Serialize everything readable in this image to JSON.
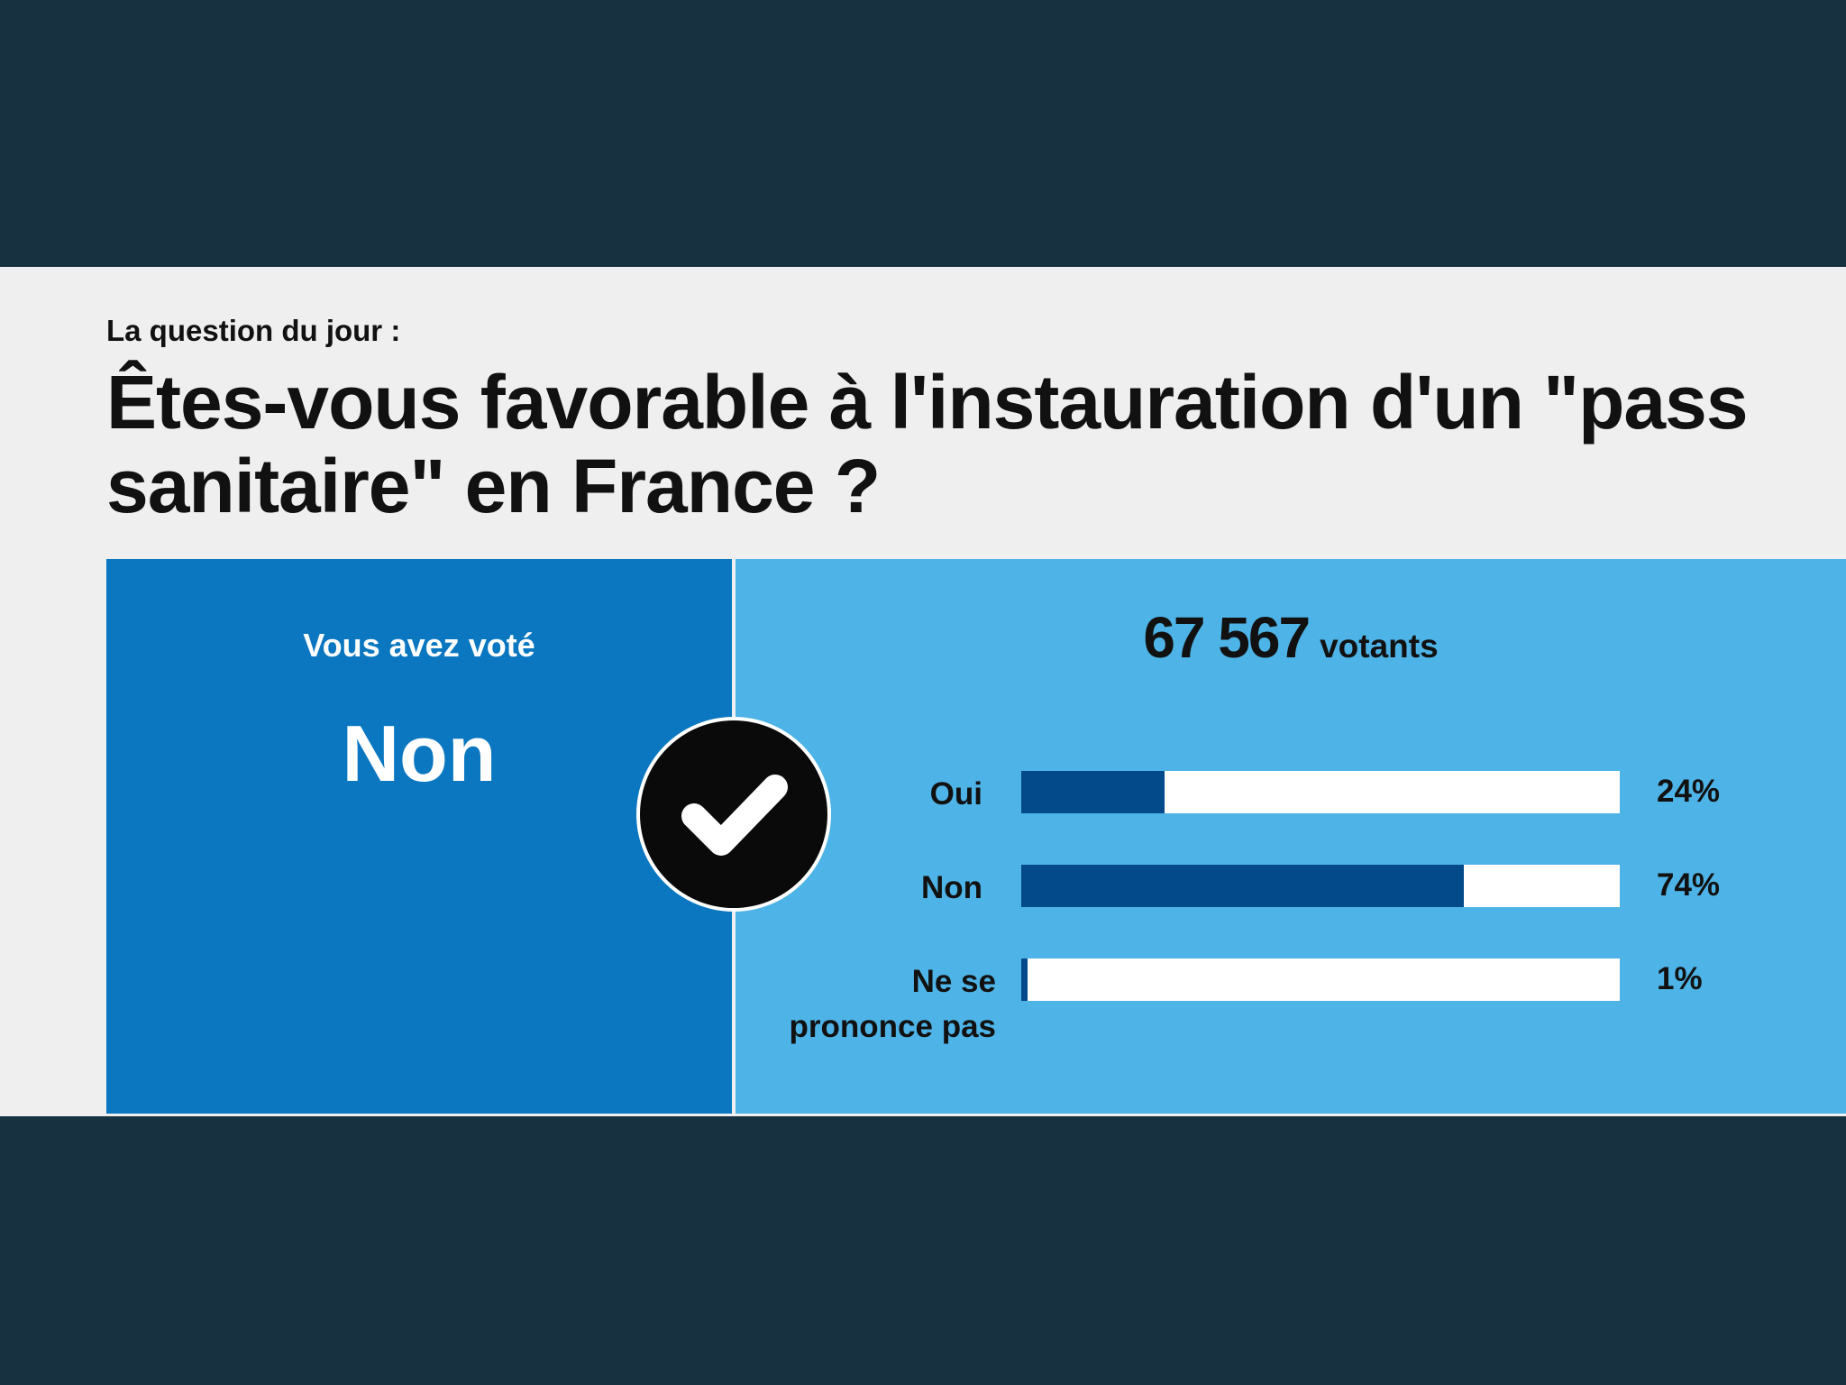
{
  "poll": {
    "kicker": "La question du jour :",
    "question": "Êtes-vous favorable à l'instauration d'un \"pass sanitaire\" en France ?",
    "vote_label": "Vous avez voté",
    "vote_choice": "Non",
    "voters_count": "67 567",
    "voters_label": "votants",
    "options": [
      {
        "label": "Oui",
        "percent_text": "24%",
        "percent": 24
      },
      {
        "label": "Non",
        "percent_text": "74%",
        "percent": 74
      },
      {
        "label": "Ne se prononce pas",
        "percent_text": "1%",
        "percent": 1
      }
    ]
  },
  "icons": {
    "check": "checkmark-icon"
  },
  "colors": {
    "background": "#183141",
    "card": "#efefef",
    "vote_panel": "#0a77c0",
    "results_panel": "#4eb3e6",
    "bar_fill": "#034a8a",
    "bar_track": "#ffffff"
  }
}
